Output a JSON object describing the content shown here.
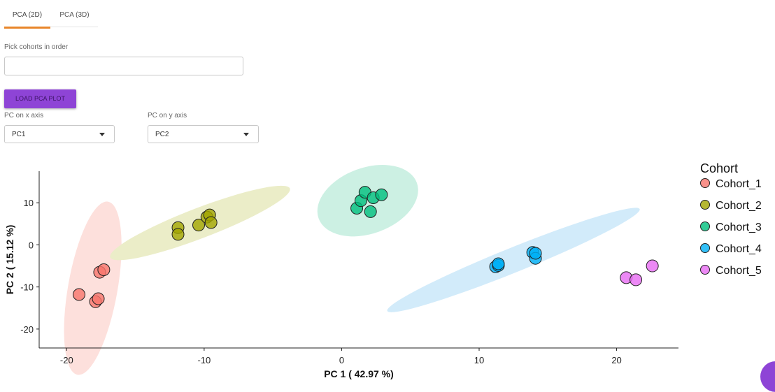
{
  "tabs": [
    {
      "label": "PCA (2D)",
      "active": true
    },
    {
      "label": "PCA (3D)",
      "active": false
    }
  ],
  "cohort_picker": {
    "label": "Pick cohorts in order",
    "value": ""
  },
  "load_button": {
    "label": "LOAD PCA PLOT"
  },
  "x_select": {
    "label": "PC on x axis",
    "value": "PC1"
  },
  "y_select": {
    "label": "PC on y axis",
    "value": "PC2"
  },
  "colors": {
    "accent_tab": "#e8862a",
    "button": "#8e44d6",
    "Cohort_1": "#f8766d",
    "Cohort_2": "#a3a500",
    "Cohort_3": "#00bf7d",
    "Cohort_4": "#00b0f6",
    "Cohort_5": "#e76bf3"
  },
  "chart_data": {
    "type": "scatter",
    "xlabel": "PC 1 ( 42.97 %)",
    "ylabel": "PC 2 ( 15.12 %)",
    "xlim": [
      -22,
      24.5
    ],
    "ylim": [
      -24.5,
      17.5
    ],
    "xticks": [
      -20,
      -10,
      0,
      10,
      20
    ],
    "yticks": [
      -20,
      -10,
      0,
      10
    ],
    "grid": false,
    "legend": {
      "title": "Cohort",
      "placement": "right"
    },
    "series": [
      {
        "name": "Cohort_1",
        "color": "#f8766d",
        "ellipse_color": "#fde0dc",
        "points": [
          [
            -19.1,
            -11.8
          ],
          [
            -17.9,
            -13.5
          ],
          [
            -17.7,
            -12.8
          ],
          [
            -17.6,
            -6.5
          ],
          [
            -17.3,
            -5.9
          ]
        ],
        "ellipse": {
          "cx": -18.1,
          "cy": -10.3,
          "rx": 12.8,
          "ry": 1.8,
          "angle": 80
        }
      },
      {
        "name": "Cohort_2",
        "color": "#a3a500",
        "ellipse_color": "#ebedc8",
        "points": [
          [
            -11.9,
            4.1
          ],
          [
            -11.9,
            2.5
          ],
          [
            -10.4,
            4.7
          ],
          [
            -9.8,
            6.6
          ],
          [
            -9.6,
            7.1
          ],
          [
            -9.5,
            5.3
          ]
        ],
        "ellipse": {
          "cx": -10.3,
          "cy": 5.2,
          "rx": 7.0,
          "ry": 1.1,
          "angle": 21
        }
      },
      {
        "name": "Cohort_3",
        "color": "#00bf7d",
        "ellipse_color": "#ccf0e3",
        "points": [
          [
            1.1,
            8.7
          ],
          [
            1.4,
            10.5
          ],
          [
            1.7,
            12.5
          ],
          [
            2.1,
            7.9
          ],
          [
            2.3,
            11.2
          ],
          [
            2.9,
            11.9
          ]
        ],
        "ellipse": {
          "cx": 1.9,
          "cy": 10.5,
          "rx": 3.8,
          "ry": 2.4,
          "angle": 20
        }
      },
      {
        "name": "Cohort_4",
        "color": "#00b0f6",
        "ellipse_color": "#d2ebfa",
        "points": [
          [
            11.2,
            -5.2
          ],
          [
            11.4,
            -4.9
          ],
          [
            11.4,
            -4.5
          ],
          [
            13.9,
            -1.8
          ],
          [
            14.1,
            -3.2
          ],
          [
            14.1,
            -2.0
          ]
        ],
        "ellipse": {
          "cx": 12.5,
          "cy": -3.6,
          "rx": 9.9,
          "ry": 0.9,
          "angle": 22
        }
      },
      {
        "name": "Cohort_5",
        "color": "#e76bf3",
        "ellipse_color": "#ffffff",
        "points": [
          [
            20.7,
            -7.8
          ],
          [
            21.4,
            -8.3
          ],
          [
            22.6,
            -5.0
          ]
        ],
        "ellipse": null
      }
    ]
  }
}
